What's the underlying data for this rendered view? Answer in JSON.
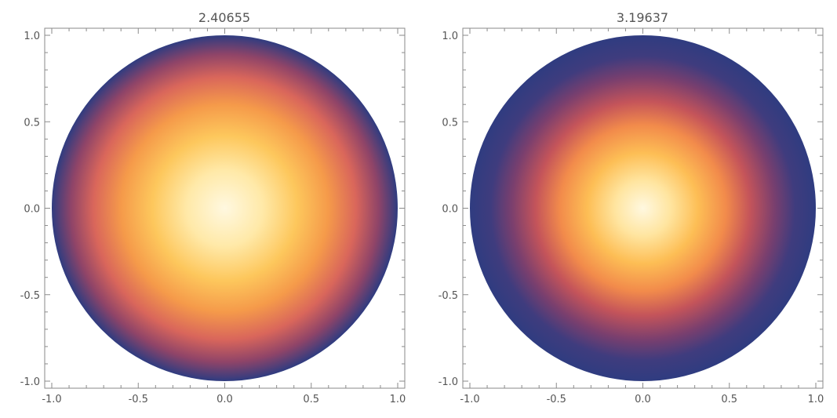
{
  "chart_data": [
    {
      "type": "heatmap",
      "title": "2.40655",
      "xlabel": "",
      "ylabel": "",
      "xlim": [
        -1.0,
        1.0
      ],
      "ylim": [
        -1.0,
        1.0
      ],
      "xticks": [
        "-1.0",
        "-0.5",
        "0.0",
        "0.5",
        "1.0"
      ],
      "yticks": [
        "-1.0",
        "-0.5",
        "0.0",
        "0.5",
        "1.0"
      ],
      "xtick_values": [
        -1.0,
        -0.5,
        0.0,
        0.5,
        1.0
      ],
      "ytick_values": [
        -1.0,
        -0.5,
        0.0,
        0.5,
        1.0
      ],
      "region": "unit-disk",
      "field": "radially symmetric, maximum at center, minimum at boundary",
      "colors": {
        "center": "#fff8e0",
        "mid": "#fdbe55",
        "outer": "#c4545a",
        "edge": "#2f3c80"
      },
      "grid": false
    },
    {
      "type": "heatmap",
      "title": "3.19637",
      "xlabel": "",
      "ylabel": "",
      "xlim": [
        -1.0,
        1.0
      ],
      "ylim": [
        -1.0,
        1.0
      ],
      "xticks": [
        "-1.0",
        "-0.5",
        "0.0",
        "0.5",
        "1.0"
      ],
      "yticks": [
        "-1.0",
        "-0.5",
        "0.0",
        "0.5",
        "1.0"
      ],
      "xtick_values": [
        -1.0,
        -0.5,
        0.0,
        0.5,
        1.0
      ],
      "ytick_values": [
        -1.0,
        -0.5,
        0.0,
        0.5,
        1.0
      ],
      "region": "unit-disk",
      "field": "radially symmetric, maximum at center, minimum at boundary",
      "colors": {
        "center": "#fff8e0",
        "mid": "#fdbe55",
        "outer": "#c4545a",
        "edge": "#2f3c80"
      },
      "grid": false
    }
  ]
}
